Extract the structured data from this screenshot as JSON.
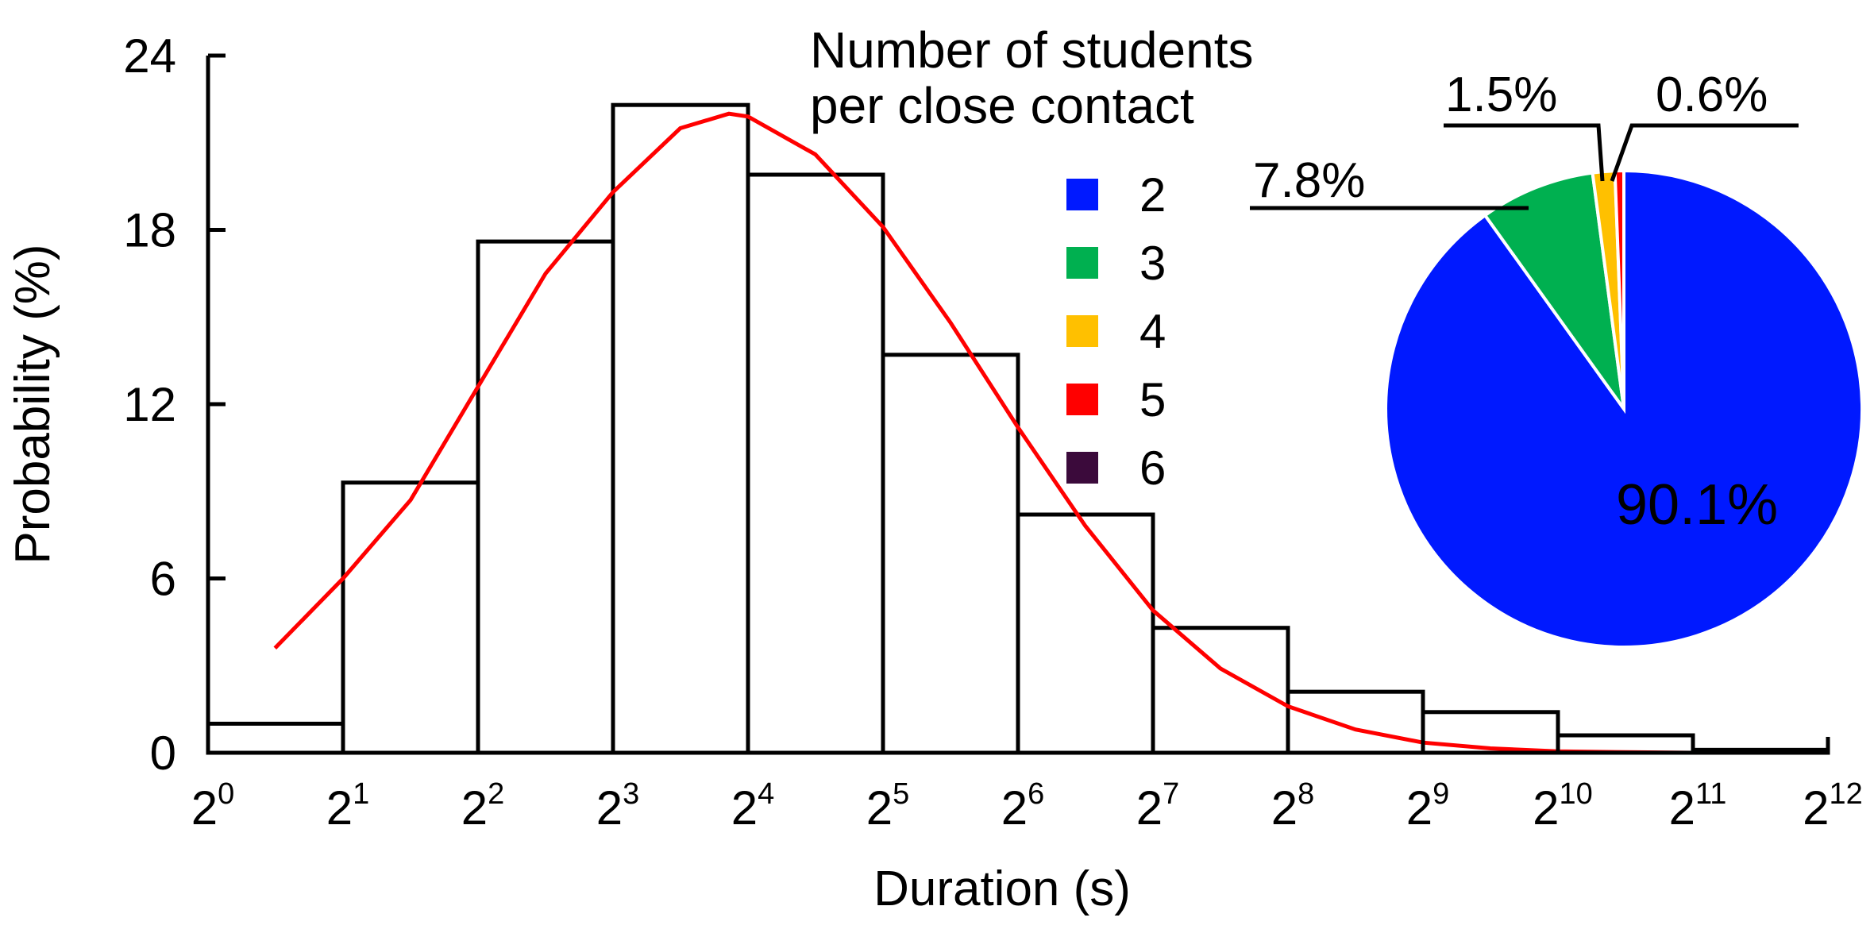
{
  "chart_data": [
    {
      "type": "bar",
      "subtype": "histogram",
      "xlabel": "Duration (s)",
      "ylabel": "Probability (%)",
      "x_scale": "log2",
      "xlim": [
        1,
        4096
      ],
      "ylim": [
        0,
        24
      ],
      "grid": false,
      "x_ticks": [
        {
          "base": "2",
          "exp": "0"
        },
        {
          "base": "2",
          "exp": "1"
        },
        {
          "base": "2",
          "exp": "2"
        },
        {
          "base": "2",
          "exp": "3"
        },
        {
          "base": "2",
          "exp": "4"
        },
        {
          "base": "2",
          "exp": "5"
        },
        {
          "base": "2",
          "exp": "6"
        },
        {
          "base": "2",
          "exp": "7"
        },
        {
          "base": "2",
          "exp": "8"
        },
        {
          "base": "2",
          "exp": "9"
        },
        {
          "base": "2",
          "exp": "10"
        },
        {
          "base": "2",
          "exp": "11"
        },
        {
          "base": "2",
          "exp": "12"
        }
      ],
      "y_ticks": [
        "0",
        "6",
        "12",
        "18",
        "24"
      ],
      "bins": [
        {
          "from": 1,
          "to": 2,
          "value": 1.0
        },
        {
          "from": 2,
          "to": 4,
          "value": 9.3
        },
        {
          "from": 4,
          "to": 8,
          "value": 17.6
        },
        {
          "from": 8,
          "to": 16,
          "value": 22.3
        },
        {
          "from": 16,
          "to": 32,
          "value": 19.9
        },
        {
          "from": 32,
          "to": 64,
          "value": 13.7
        },
        {
          "from": 64,
          "to": 128,
          "value": 8.2
        },
        {
          "from": 128,
          "to": 256,
          "value": 4.3
        },
        {
          "from": 256,
          "to": 512,
          "value": 2.1
        },
        {
          "from": 512,
          "to": 1024,
          "value": 1.4
        },
        {
          "from": 1024,
          "to": 2048,
          "value": 0.6
        },
        {
          "from": 2048,
          "to": 4096,
          "value": 0.1
        }
      ],
      "fit_curve": {
        "color": "#ff0000",
        "points": [
          [
            1.41,
            3.6
          ],
          [
            2.0,
            6.0
          ],
          [
            2.83,
            8.7
          ],
          [
            4.0,
            12.6
          ],
          [
            5.66,
            16.5
          ],
          [
            8.0,
            19.3
          ],
          [
            11.3,
            21.5
          ],
          [
            14.5,
            22.0
          ],
          [
            16.0,
            21.9
          ],
          [
            22.6,
            20.6
          ],
          [
            32.0,
            18.1
          ],
          [
            45.3,
            14.8
          ],
          [
            64.0,
            11.2
          ],
          [
            90.5,
            7.8
          ],
          [
            128.0,
            4.9
          ],
          [
            181.0,
            2.9
          ],
          [
            256.0,
            1.6
          ],
          [
            362.0,
            0.8
          ],
          [
            512.0,
            0.35
          ],
          [
            724.0,
            0.15
          ],
          [
            1024.0,
            0.05
          ],
          [
            1448.0,
            0.02
          ],
          [
            2048.0,
            0.0
          ],
          [
            2896.0,
            0.0
          ]
        ]
      }
    },
    {
      "type": "pie",
      "legend_title": [
        "Number of students",
        "per close contact"
      ],
      "slices": [
        {
          "label": "2",
          "value": 90.1,
          "value_label": "90.1%",
          "color": "#0019ff"
        },
        {
          "label": "3",
          "value": 7.8,
          "value_label": "7.8%",
          "color": "#00b050"
        },
        {
          "label": "4",
          "value": 1.5,
          "value_label": "1.5%",
          "color": "#ffc000"
        },
        {
          "label": "5",
          "value": 0.6,
          "value_label": "0.6%",
          "color": "#ff0000"
        },
        {
          "label": "6",
          "value": 0.0,
          "value_label": "",
          "color": "#3b0a3b"
        }
      ]
    }
  ]
}
